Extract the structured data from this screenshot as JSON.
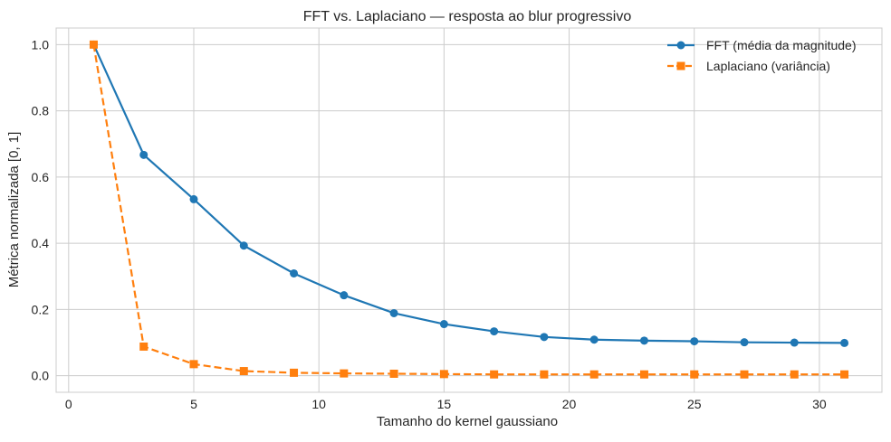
{
  "chart_data": {
    "type": "line",
    "title": "FFT vs. Laplaciano — resposta ao blur progressivo",
    "xlabel": "Tamanho do kernel gaussiano",
    "ylabel": "Métrica normalizada [0, 1]",
    "xlim": [
      -0.5,
      32.5
    ],
    "ylim": [
      -0.05,
      1.05
    ],
    "xticks": [
      0,
      5,
      10,
      15,
      20,
      25,
      30
    ],
    "yticks": [
      0.0,
      0.2,
      0.4,
      0.6,
      0.8,
      1.0
    ],
    "ytick_labels": [
      "0.0",
      "0.2",
      "0.4",
      "0.6",
      "0.8",
      "1.0"
    ],
    "grid": true,
    "legend_position": "top-right",
    "x": [
      1,
      3,
      5,
      7,
      9,
      11,
      13,
      15,
      17,
      19,
      21,
      23,
      25,
      27,
      29,
      31
    ],
    "series": [
      {
        "name": "FFT (média da magnitude)",
        "color": "#1f77b4",
        "marker": "circle",
        "linestyle": "solid",
        "values": [
          1.0,
          0.667,
          0.533,
          0.393,
          0.309,
          0.243,
          0.189,
          0.156,
          0.134,
          0.117,
          0.109,
          0.106,
          0.104,
          0.101,
          0.1,
          0.099
        ]
      },
      {
        "name": "Laplaciano (variância)",
        "color": "#ff7f0e",
        "marker": "square",
        "linestyle": "dashed",
        "values": [
          1.0,
          0.088,
          0.035,
          0.014,
          0.009,
          0.007,
          0.006,
          0.005,
          0.004,
          0.004,
          0.004,
          0.004,
          0.004,
          0.004,
          0.004,
          0.004
        ]
      }
    ]
  }
}
